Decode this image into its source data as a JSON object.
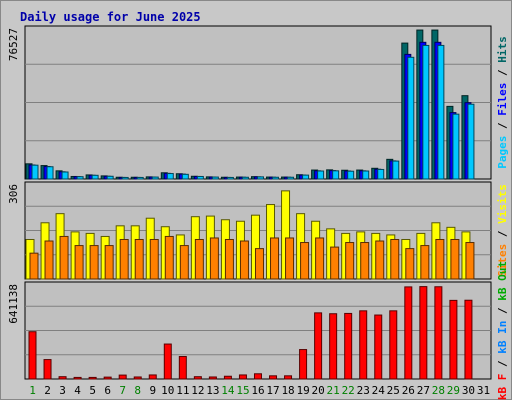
{
  "chart_data": {
    "type": "bar",
    "title": "Daily usage for June 2025",
    "days": [
      "1",
      "2",
      "3",
      "4",
      "5",
      "6",
      "7",
      "8",
      "9",
      "10",
      "11",
      "12",
      "13",
      "14",
      "15",
      "16",
      "17",
      "18",
      "19",
      "20",
      "21",
      "22",
      "23",
      "24",
      "25",
      "26",
      "27",
      "28",
      "29",
      "30",
      "31"
    ],
    "weekend_days": [
      "1",
      "7",
      "8",
      "14",
      "15",
      "21",
      "22",
      "28",
      "29"
    ],
    "panels": [
      {
        "id": "hits",
        "max_label": "76527",
        "ylim": [
          0,
          76527
        ],
        "series": [
          {
            "name": "Hits",
            "color": "#006666",
            "values": [
              7800,
              6900,
              4200,
              1300,
              2100,
              1600,
              900,
              900,
              1100,
              3200,
              2700,
              1400,
              1100,
              900,
              1000,
              1200,
              1000,
              1000,
              2200,
              4600,
              4700,
              4500,
              4600,
              5500,
              10100,
              69800,
              76500,
              76500,
              37300,
              42800,
              0
            ]
          },
          {
            "name": "Files",
            "color": "#0000ff",
            "values": [
              7200,
              6400,
              3700,
              1200,
              1900,
              1400,
              800,
              800,
              1000,
              2900,
              2500,
              1300,
              1000,
              800,
              900,
              1100,
              900,
              900,
              2000,
              4200,
              4300,
              4100,
              4200,
              5000,
              9300,
              64000,
              70200,
              70200,
              34100,
              39200,
              0
            ]
          },
          {
            "name": "Pages",
            "color": "#00c8ff",
            "values": [
              7100,
              6300,
              3600,
              1200,
              1900,
              1400,
              800,
              800,
              1000,
              2800,
              2400,
              1300,
              1000,
              800,
              900,
              1100,
              900,
              900,
              2000,
              4100,
              4200,
              4000,
              4100,
              4900,
              9200,
              62500,
              68600,
              68600,
              33300,
              38400,
              0
            ]
          }
        ]
      },
      {
        "id": "visits",
        "max_label": "306",
        "ylim": [
          0,
          306
        ],
        "series": [
          {
            "name": "Visits",
            "color": "#ffff00",
            "values": [
              130,
              185,
              215,
              155,
              150,
              140,
              175,
              175,
              200,
              172,
              145,
              205,
              207,
              195,
              190,
              210,
              245,
              290,
              215,
              190,
              165,
              150,
              155,
              150,
              145,
              130,
              150,
              185,
              170,
              155,
              0
            ]
          },
          {
            "name": "Sites",
            "color": "#ff8000",
            "values": [
              85,
              125,
              140,
              110,
              110,
              110,
              130,
              130,
              130,
              140,
              110,
              130,
              135,
              130,
              125,
              100,
              135,
              135,
              120,
              135,
              105,
              120,
              120,
              125,
              130,
              100,
              110,
              130,
              130,
              120,
              0
            ]
          }
        ]
      },
      {
        "id": "kbytes",
        "max_label": "641138",
        "ylim": [
          0,
          641138
        ],
        "series": [
          {
            "name": "kB F",
            "color": "#ff0000",
            "values": [
              326000,
              134000,
              16000,
              11000,
              11000,
              13000,
              27000,
              14000,
              28000,
              241000,
              155000,
              16000,
              14000,
              19000,
              28000,
              36000,
              22000,
              22000,
              203000,
              456000,
              450000,
              452000,
              470000,
              441000,
              470000,
              635000,
              637000,
              636000,
              542000,
              543000,
              0
            ]
          }
        ]
      }
    ],
    "side_labels": {
      "hits": [
        {
          "text": "Pages",
          "color": "#00c8ff"
        },
        {
          "text": " / ",
          "color": "#000000"
        },
        {
          "text": "Files",
          "color": "#0000ff"
        },
        {
          "text": " / ",
          "color": "#000000"
        },
        {
          "text": "Hits",
          "color": "#006666"
        }
      ],
      "visits": [
        {
          "text": "Sites",
          "color": "#ff8000"
        },
        {
          "text": " / ",
          "color": "#000000"
        },
        {
          "text": "Visits",
          "color": "#ffff00"
        }
      ],
      "kbytes": [
        {
          "text": "kB F",
          "color": "#ff0000"
        },
        {
          "text": " / ",
          "color": "#000000"
        },
        {
          "text": "kB In",
          "color": "#0080ff"
        },
        {
          "text": " / ",
          "color": "#000000"
        },
        {
          "text": "kB Out",
          "color": "#00aa00"
        }
      ]
    },
    "day_color": "#000000",
    "weekend_color": "#008000"
  }
}
